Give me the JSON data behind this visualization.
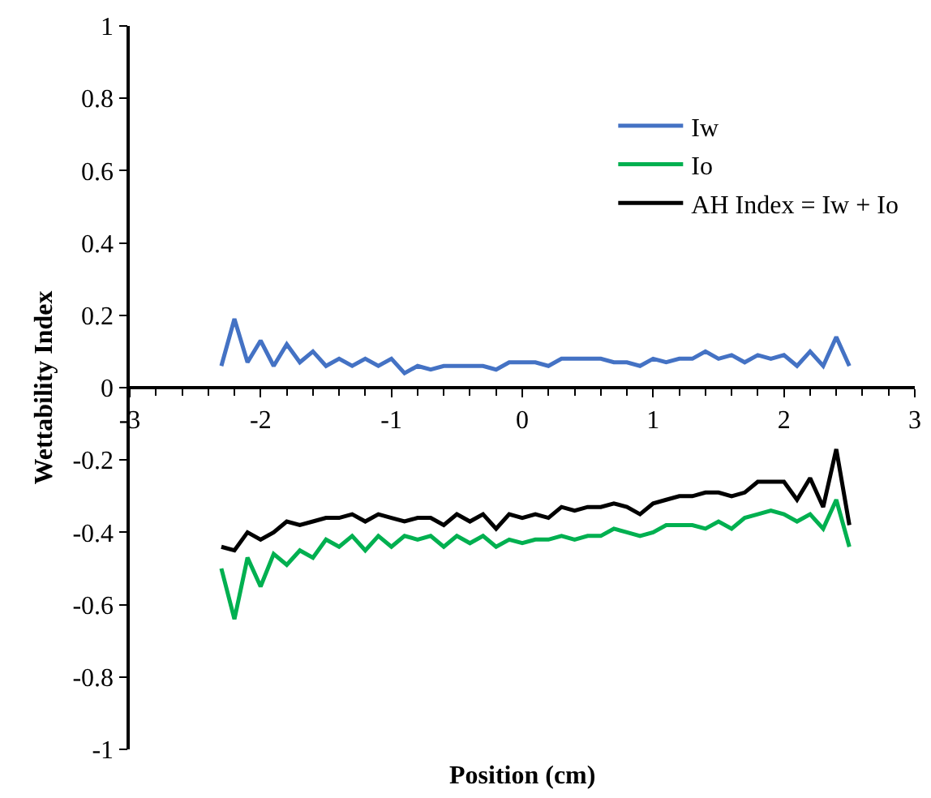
{
  "chart_data": {
    "type": "line",
    "xlabel": "Position (cm)",
    "ylabel": "Wettability Index",
    "xlim": [
      -3,
      3
    ],
    "xticks": [
      -3,
      -2,
      -1,
      0,
      1,
      2,
      3
    ],
    "ylim": [
      -1,
      1
    ],
    "yticks": [
      -1,
      -0.8,
      -0.6,
      -0.4,
      -0.2,
      0,
      0.2,
      0.4,
      0.6,
      0.8,
      1
    ],
    "legend": "top right",
    "marker": "none",
    "line_style": "solid",
    "x": [
      -2.3,
      -2.2,
      -2.1,
      -2.0,
      -1.9,
      -1.8,
      -1.7,
      -1.6,
      -1.5,
      -1.4,
      -1.3,
      -1.2,
      -1.1,
      -1.0,
      -0.9,
      -0.8,
      -0.7,
      -0.6,
      -0.5,
      -0.4,
      -0.3,
      -0.2,
      -0.1,
      0,
      0.1,
      0.2,
      0.3,
      0.4,
      0.5,
      0.6,
      0.7,
      0.8,
      0.9,
      1.0,
      1.1,
      1.2,
      1.3,
      1.4,
      1.5,
      1.6,
      1.7,
      1.8,
      1.9,
      2.0,
      2.1,
      2.2,
      2.3,
      2.4,
      2.5
    ],
    "series": [
      {
        "name": "Iw",
        "color": "#4472c4",
        "values": [
          0.06,
          0.19,
          0.07,
          0.13,
          0.06,
          0.12,
          0.07,
          0.1,
          0.06,
          0.08,
          0.06,
          0.08,
          0.06,
          0.08,
          0.04,
          0.06,
          0.05,
          0.06,
          0.06,
          0.06,
          0.06,
          0.05,
          0.07,
          0.07,
          0.07,
          0.06,
          0.08,
          0.08,
          0.08,
          0.08,
          0.07,
          0.07,
          0.06,
          0.08,
          0.07,
          0.08,
          0.08,
          0.1,
          0.08,
          0.09,
          0.07,
          0.09,
          0.08,
          0.09,
          0.06,
          0.1,
          0.06,
          0.14,
          0.06
        ]
      },
      {
        "name": "Io",
        "color": "#00b050",
        "values": [
          -0.5,
          -0.64,
          -0.47,
          -0.55,
          -0.46,
          -0.49,
          -0.45,
          -0.47,
          -0.42,
          -0.44,
          -0.41,
          -0.45,
          -0.41,
          -0.44,
          -0.41,
          -0.42,
          -0.41,
          -0.44,
          -0.41,
          -0.43,
          -0.41,
          -0.44,
          -0.42,
          -0.43,
          -0.42,
          -0.42,
          -0.41,
          -0.42,
          -0.41,
          -0.41,
          -0.39,
          -0.4,
          -0.41,
          -0.4,
          -0.38,
          -0.38,
          -0.38,
          -0.39,
          -0.37,
          -0.39,
          -0.36,
          -0.35,
          -0.34,
          -0.35,
          -0.37,
          -0.35,
          -0.39,
          -0.31,
          -0.44
        ]
      },
      {
        "name": "AH Index = Iw + Io",
        "color": "#000000",
        "values": [
          -0.44,
          -0.45,
          -0.4,
          -0.42,
          -0.4,
          -0.37,
          -0.38,
          -0.37,
          -0.36,
          -0.36,
          -0.35,
          -0.37,
          -0.35,
          -0.36,
          -0.37,
          -0.36,
          -0.36,
          -0.38,
          -0.35,
          -0.37,
          -0.35,
          -0.39,
          -0.35,
          -0.36,
          -0.35,
          -0.36,
          -0.33,
          -0.34,
          -0.33,
          -0.33,
          -0.32,
          -0.33,
          -0.35,
          -0.32,
          -0.31,
          -0.3,
          -0.3,
          -0.29,
          -0.29,
          -0.3,
          -0.29,
          -0.26,
          -0.26,
          -0.26,
          -0.31,
          -0.25,
          -0.33,
          -0.17,
          -0.38
        ]
      }
    ]
  }
}
